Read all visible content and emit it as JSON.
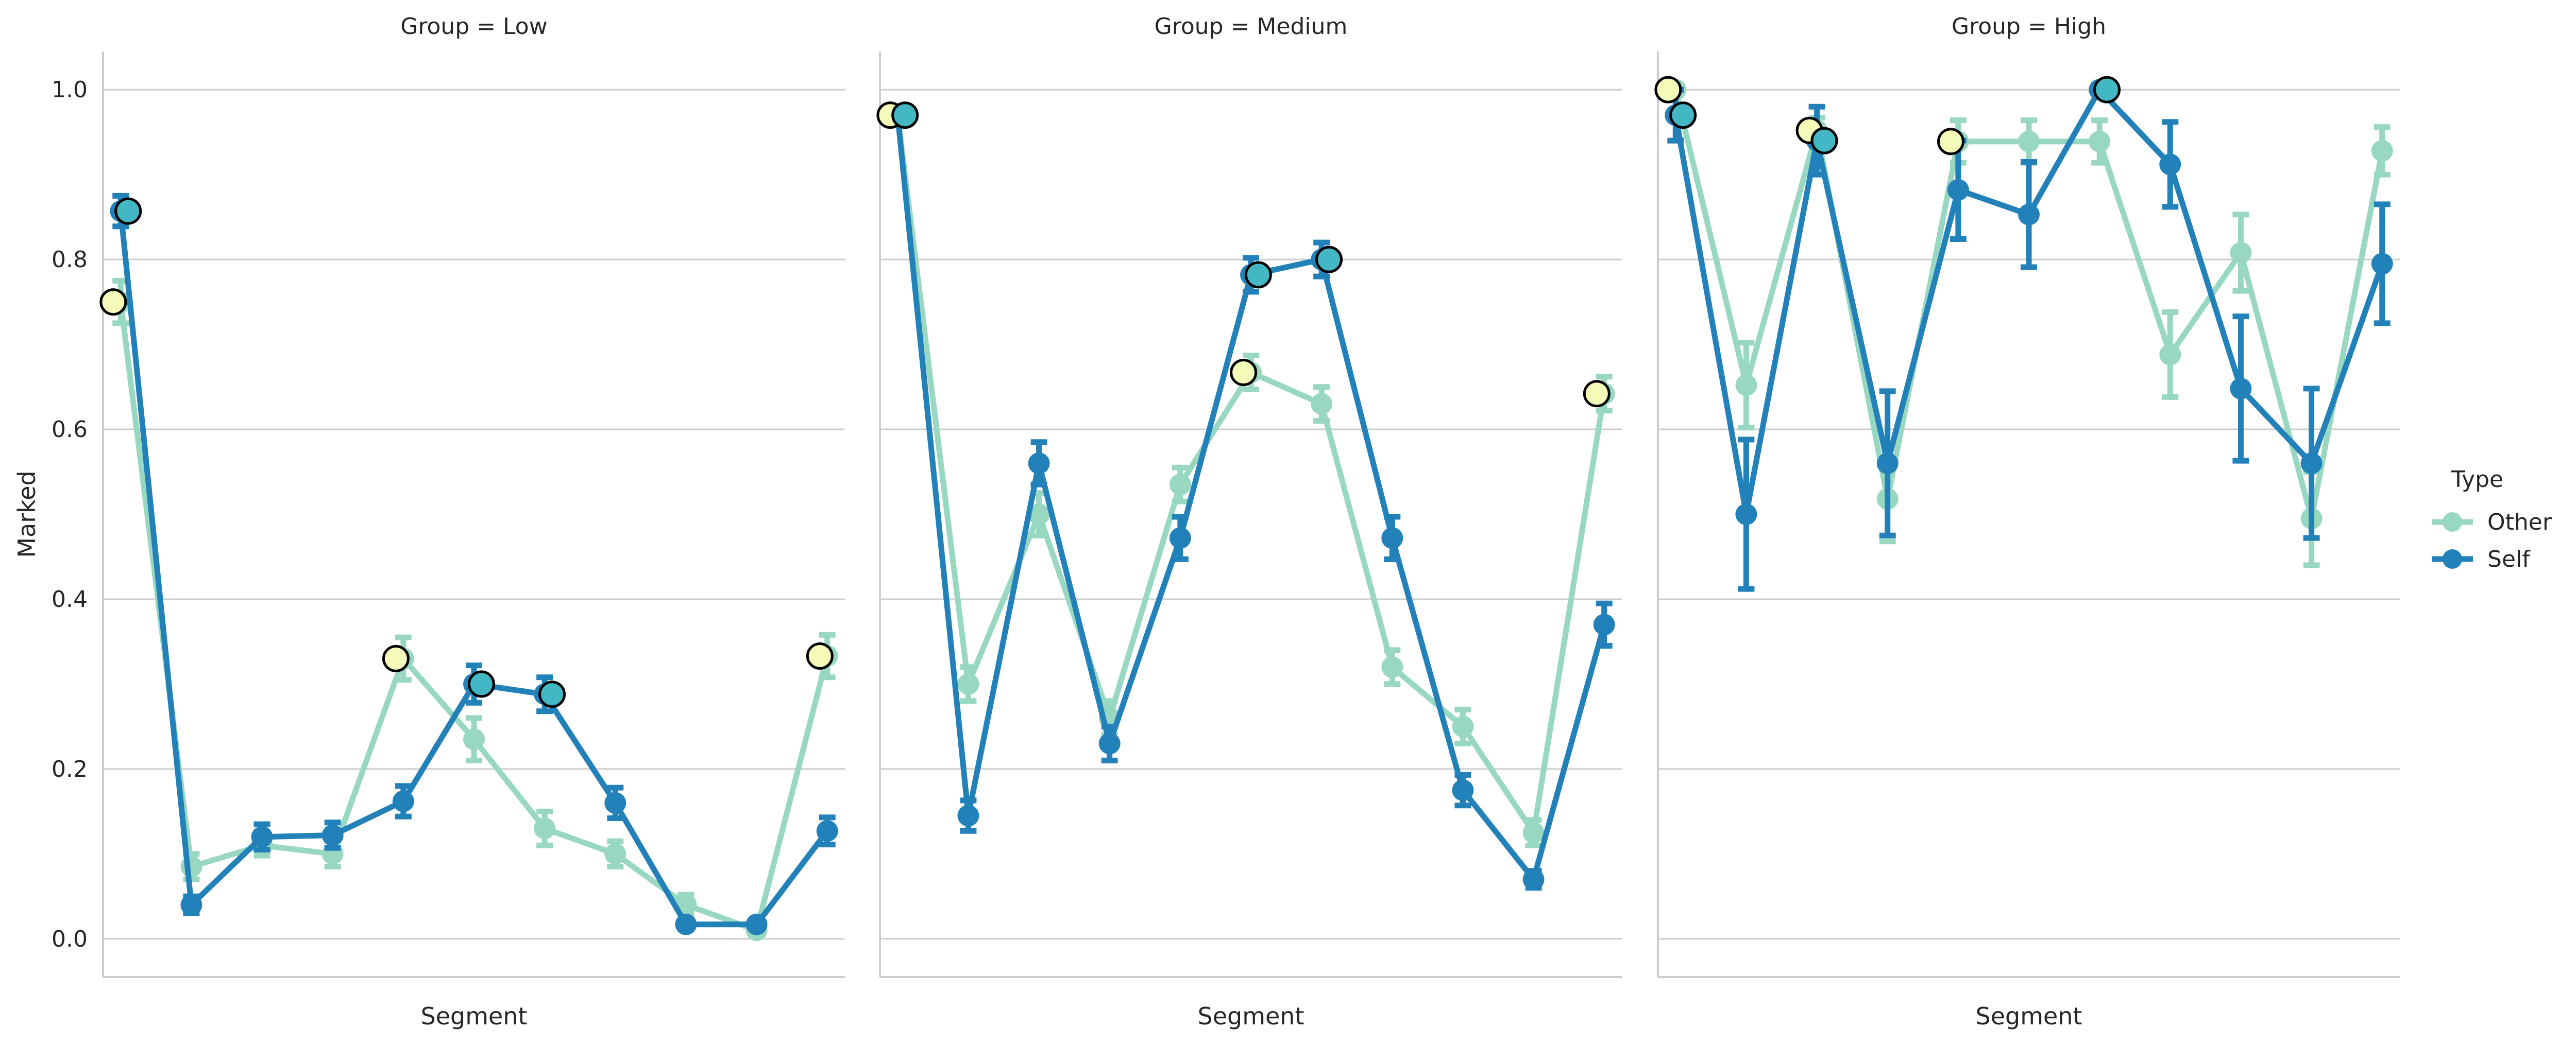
{
  "chart_data": {
    "type": "line",
    "ylabel": "Marked",
    "xlabel": "Segment",
    "ylim": [
      -0.045,
      1.045
    ],
    "yticks": [
      0.0,
      0.2,
      0.4,
      0.6,
      0.8,
      1.0
    ],
    "ytick_labels": [
      "0.0",
      "0.2",
      "0.4",
      "0.6",
      "0.8",
      "1.0"
    ],
    "grid": "horizontal",
    "legend": {
      "title": "Type",
      "placement": "right",
      "entries": [
        "Other",
        "Self"
      ]
    },
    "colors": {
      "Other": "#99d8c0",
      "Self": "#2381ba",
      "highlight_other": "#f4fab8",
      "highlight_self": "#43b7c3",
      "highlight_edge": "#000000",
      "grid": "#cccccc",
      "axis": "#cccccc"
    },
    "panels": [
      {
        "title": "Group = Low",
        "series": [
          {
            "name": "Other",
            "values": [
              0.75,
              0.085,
              0.11,
              0.1,
              0.33,
              0.235,
              0.13,
              0.1,
              0.04,
              0.01,
              0.333
            ],
            "err": [
              0.025,
              0.015,
              0.012,
              0.015,
              0.025,
              0.025,
              0.02,
              0.015,
              0.012,
              0.005,
              0.025
            ]
          },
          {
            "name": "Self",
            "values": [
              0.857,
              0.04,
              0.12,
              0.122,
              0.162,
              0.3,
              0.288,
              0.16,
              0.017,
              0.017,
              0.127
            ],
            "err": [
              0.018,
              0.01,
              0.015,
              0.015,
              0.018,
              0.022,
              0.02,
              0.018,
              0.005,
              0.005,
              0.016
            ]
          }
        ],
        "highlights": [
          {
            "series": "Other",
            "index": 0,
            "value": 0.75
          },
          {
            "series": "Self",
            "index": 0,
            "value": 0.857
          },
          {
            "series": "Other",
            "index": 4,
            "value": 0.33
          },
          {
            "series": "Self",
            "index": 5,
            "value": 0.3
          },
          {
            "series": "Self",
            "index": 6,
            "value": 0.288
          },
          {
            "series": "Other",
            "index": 10,
            "value": 0.333
          }
        ]
      },
      {
        "title": "Group = Medium",
        "series": [
          {
            "name": "Other",
            "values": [
              0.97,
              0.3,
              0.5,
              0.26,
              0.535,
              0.667,
              0.63,
              0.32,
              0.25,
              0.125,
              0.642
            ],
            "err": [
              0.005,
              0.02,
              0.025,
              0.02,
              0.02,
              0.02,
              0.02,
              0.02,
              0.02,
              0.015,
              0.02
            ]
          },
          {
            "name": "Self",
            "values": [
              0.97,
              0.145,
              0.56,
              0.23,
              0.472,
              0.782,
              0.8,
              0.472,
              0.175,
              0.07,
              0.37
            ],
            "err": [
              0.005,
              0.018,
              0.025,
              0.02,
              0.025,
              0.02,
              0.02,
              0.025,
              0.018,
              0.01,
              0.025
            ]
          }
        ],
        "highlights": [
          {
            "series": "Other",
            "index": 0,
            "value": 0.97
          },
          {
            "series": "Self",
            "index": 0,
            "value": 0.97
          },
          {
            "series": "Other",
            "index": 5,
            "value": 0.667
          },
          {
            "series": "Self",
            "index": 5,
            "value": 0.782
          },
          {
            "series": "Self",
            "index": 6,
            "value": 0.8
          },
          {
            "series": "Other",
            "index": 10,
            "value": 0.642
          }
        ]
      },
      {
        "title": "Group = High",
        "series": [
          {
            "name": "Other",
            "values": [
              1.0,
              0.652,
              0.952,
              0.518,
              0.939,
              0.939,
              0.939,
              0.688,
              0.808,
              0.495,
              0.928
            ],
            "err": [
              0.005,
              0.05,
              0.015,
              0.05,
              0.025,
              0.025,
              0.025,
              0.05,
              0.045,
              0.055,
              0.028
            ]
          },
          {
            "name": "Self",
            "values": [
              0.97,
              0.5,
              0.94,
              0.56,
              0.882,
              0.853,
              1.0,
              0.912,
              0.648,
              0.56,
              0.795
            ],
            "err": [
              0.03,
              0.088,
              0.04,
              0.085,
              0.058,
              0.062,
              0.005,
              0.05,
              0.085,
              0.088,
              0.07
            ]
          }
        ],
        "highlights": [
          {
            "series": "Other",
            "index": 0,
            "value": 1.0
          },
          {
            "series": "Self",
            "index": 0,
            "value": 0.97
          },
          {
            "series": "Other",
            "index": 2,
            "value": 0.952
          },
          {
            "series": "Self",
            "index": 2,
            "value": 0.94
          },
          {
            "series": "Other",
            "index": 4,
            "value": 0.939
          },
          {
            "series": "Self",
            "index": 6,
            "value": 1.0
          }
        ]
      }
    ]
  }
}
